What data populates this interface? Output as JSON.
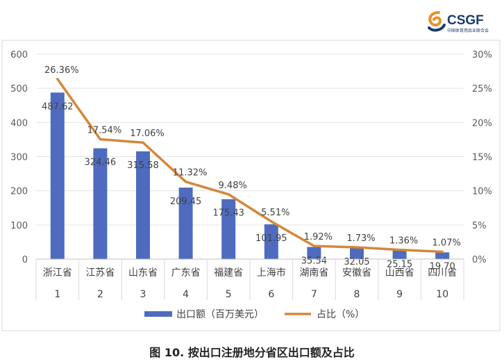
{
  "logo": {
    "text": "CSGF",
    "subtext": "中国体育用品业联合会",
    "colors": {
      "mark": "#e8912a",
      "text": "#1d3a6e"
    }
  },
  "caption": "图 10. 按出口注册地分省区出口额及占比",
  "chart_data": {
    "type": "bar+line",
    "categories": [
      "浙江省",
      "江苏省",
      "山东省",
      "广东省",
      "福建省",
      "上海市",
      "湖南省",
      "安徽省",
      "山西省",
      "四川省"
    ],
    "ranks": [
      "1",
      "2",
      "3",
      "4",
      "5",
      "6",
      "7",
      "8",
      "9",
      "10"
    ],
    "series": [
      {
        "name": "出口额（百万美元）",
        "type": "bar",
        "axis": "left",
        "values": [
          487.62,
          324.46,
          315.58,
          209.45,
          175.43,
          101.95,
          35.54,
          32.05,
          25.15,
          19.7
        ],
        "labels": [
          "487.62",
          "324.46",
          "315.58",
          "209.45",
          "175.43",
          "101.95",
          "35.54",
          "32.05",
          "25.15",
          "19.70"
        ],
        "color": "#4f6bbf"
      },
      {
        "name": "占比（%）",
        "type": "line",
        "axis": "right",
        "values": [
          26.36,
          17.54,
          17.06,
          11.32,
          9.48,
          5.51,
          1.92,
          1.73,
          1.36,
          1.07
        ],
        "labels": [
          "26.36%",
          "17.54%",
          "17.06%",
          "11.32%",
          "9.48%",
          "5.51%",
          "1.92%",
          "1.73%",
          "1.36%",
          "1.07%"
        ],
        "color": "#d4873a"
      }
    ],
    "y_left": {
      "min": 0,
      "max": 600,
      "ticks": [
        "0",
        "100",
        "200",
        "300",
        "400",
        "500",
        "600"
      ]
    },
    "y_right": {
      "min": 0,
      "max": 30,
      "ticks": [
        "0%",
        "5%",
        "10%",
        "15%",
        "20%",
        "25%",
        "30%"
      ]
    },
    "grid": true,
    "legend": "bottom"
  }
}
